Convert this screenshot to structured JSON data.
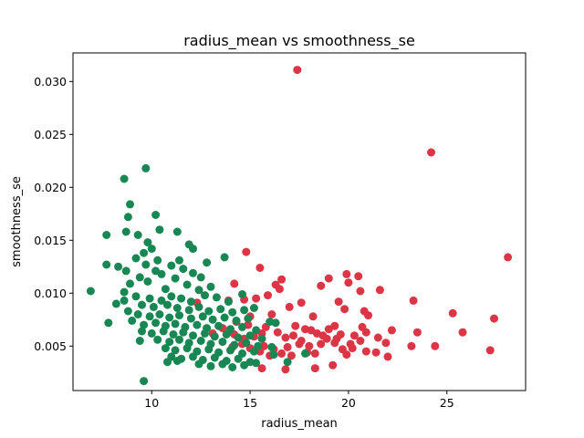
{
  "chart_data": {
    "type": "scatter",
    "title": "radius_mean vs smoothness_se",
    "xlabel": "radius_mean",
    "ylabel": "smoothness_se",
    "xlim": [
      6.0,
      29.0
    ],
    "ylim": [
      0.0008,
      0.0327
    ],
    "x_ticks": [
      10,
      15,
      20,
      25
    ],
    "x_tick_labels": [
      "10",
      "15",
      "20",
      "25"
    ],
    "y_ticks": [
      0.005,
      0.01,
      0.015,
      0.02,
      0.025,
      0.03
    ],
    "y_tick_labels": [
      "0.005",
      "0.010",
      "0.015",
      "0.020",
      "0.025",
      "0.030"
    ],
    "grid": false,
    "legend": "none",
    "series": [
      {
        "color": "#dc3545",
        "points": [
          [
            17.4,
            0.0311
          ],
          [
            24.2,
            0.0233
          ],
          [
            28.1,
            0.0134
          ],
          [
            14.8,
            0.0139
          ],
          [
            19.9,
            0.0118
          ],
          [
            20.5,
            0.0116
          ],
          [
            16.6,
            0.0113
          ],
          [
            19.0,
            0.0114
          ],
          [
            18.6,
            0.0107
          ],
          [
            14.2,
            0.0109
          ],
          [
            15.5,
            0.0124
          ],
          [
            20.0,
            0.011
          ],
          [
            16.3,
            0.0108
          ],
          [
            16.5,
            0.0104
          ],
          [
            20.6,
            0.0102
          ],
          [
            21.6,
            0.0103
          ],
          [
            15.9,
            0.0098
          ],
          [
            17.6,
            0.0091
          ],
          [
            15.3,
            0.0095
          ],
          [
            13.9,
            0.0093
          ],
          [
            14.7,
            0.0094
          ],
          [
            12.3,
            0.0091
          ],
          [
            19.5,
            0.0092
          ],
          [
            23.3,
            0.0093
          ],
          [
            17.0,
            0.0087
          ],
          [
            19.8,
            0.0085
          ],
          [
            20.8,
            0.0083
          ],
          [
            25.3,
            0.0081
          ],
          [
            21.0,
            0.0079
          ],
          [
            16.1,
            0.008
          ],
          [
            18.2,
            0.0078
          ],
          [
            15.0,
            0.0078
          ],
          [
            14.3,
            0.0073
          ],
          [
            27.4,
            0.0076
          ],
          [
            22.2,
            0.0065
          ],
          [
            23.5,
            0.0063
          ],
          [
            25.8,
            0.0063
          ],
          [
            19.0,
            0.0066
          ],
          [
            18.4,
            0.0062
          ],
          [
            17.8,
            0.0066
          ],
          [
            17.2,
            0.006
          ],
          [
            16.8,
            0.0058
          ],
          [
            16.4,
            0.0063
          ],
          [
            15.6,
            0.0062
          ],
          [
            15.2,
            0.0059
          ],
          [
            14.7,
            0.0057
          ],
          [
            18.9,
            0.0057
          ],
          [
            19.6,
            0.0061
          ],
          [
            20.3,
            0.006
          ],
          [
            20.9,
            0.0063
          ],
          [
            21.5,
            0.0058
          ],
          [
            21.9,
            0.0053
          ],
          [
            20.6,
            0.0055
          ],
          [
            19.3,
            0.0053
          ],
          [
            18.6,
            0.0052
          ],
          [
            18.0,
            0.005
          ],
          [
            17.5,
            0.0052
          ],
          [
            16.9,
            0.0049
          ],
          [
            16.2,
            0.0047
          ],
          [
            15.7,
            0.005
          ],
          [
            15.4,
            0.0046
          ],
          [
            15.0,
            0.0048
          ],
          [
            19.7,
            0.0047
          ],
          [
            20.2,
            0.0048
          ],
          [
            20.9,
            0.0045
          ],
          [
            21.4,
            0.0044
          ],
          [
            23.2,
            0.005
          ],
          [
            24.4,
            0.005
          ],
          [
            27.2,
            0.0046
          ],
          [
            22.0,
            0.004
          ],
          [
            19.9,
            0.0042
          ],
          [
            18.3,
            0.0043
          ],
          [
            17.9,
            0.0044
          ],
          [
            17.1,
            0.0041
          ],
          [
            16.6,
            0.0043
          ],
          [
            16.0,
            0.0041
          ],
          [
            15.5,
            0.0045
          ],
          [
            19.2,
            0.0032
          ],
          [
            18.3,
            0.0029
          ],
          [
            16.8,
            0.0028
          ],
          [
            15.6,
            0.0029
          ],
          [
            14.1,
            0.0049
          ],
          [
            14.6,
            0.0052
          ],
          [
            13.6,
            0.0067
          ],
          [
            13.1,
            0.0062
          ],
          [
            14.2,
            0.0061
          ],
          [
            14.9,
            0.007
          ],
          [
            15.8,
            0.0068
          ],
          [
            17.3,
            0.0069
          ],
          [
            18.1,
            0.0065
          ],
          [
            19.3,
            0.0069
          ],
          [
            20.7,
            0.0068
          ],
          [
            18.7,
            0.006
          ],
          [
            19.4,
            0.0057
          ],
          [
            20.1,
            0.0052
          ],
          [
            17.6,
            0.0055
          ]
        ]
      },
      {
        "color": "#198754",
        "points": [
          [
            9.7,
            0.0218
          ],
          [
            8.6,
            0.0208
          ],
          [
            8.9,
            0.0184
          ],
          [
            10.2,
            0.0174
          ],
          [
            8.8,
            0.0172
          ],
          [
            10.4,
            0.016
          ],
          [
            9.3,
            0.0155
          ],
          [
            11.3,
            0.0158
          ],
          [
            7.7,
            0.0155
          ],
          [
            8.7,
            0.0158
          ],
          [
            9.8,
            0.0148
          ],
          [
            11.9,
            0.0146
          ],
          [
            12.1,
            0.0142
          ],
          [
            9.6,
            0.0138
          ],
          [
            10.0,
            0.0142
          ],
          [
            9.2,
            0.0133
          ],
          [
            10.3,
            0.0131
          ],
          [
            7.7,
            0.0127
          ],
          [
            11.4,
            0.0131
          ],
          [
            12.8,
            0.0129
          ],
          [
            13.7,
            0.0134
          ],
          [
            8.3,
            0.0125
          ],
          [
            8.7,
            0.0121
          ],
          [
            9.7,
            0.0127
          ],
          [
            11.0,
            0.0126
          ],
          [
            11.6,
            0.0123
          ],
          [
            12.1,
            0.0119
          ],
          [
            10.2,
            0.0121
          ],
          [
            10.5,
            0.0118
          ],
          [
            11.2,
            0.0114
          ],
          [
            9.4,
            0.0115
          ],
          [
            9.8,
            0.0111
          ],
          [
            8.9,
            0.0109
          ],
          [
            12.5,
            0.0115
          ],
          [
            13.0,
            0.0106
          ],
          [
            11.8,
            0.0108
          ],
          [
            12.4,
            0.0103
          ],
          [
            10.7,
            0.0104
          ],
          [
            6.9,
            0.0102
          ],
          [
            8.6,
            0.0101
          ],
          [
            9.2,
            0.0097
          ],
          [
            9.9,
            0.0095
          ],
          [
            10.5,
            0.0093
          ],
          [
            11.0,
            0.0097
          ],
          [
            11.5,
            0.0095
          ],
          [
            12.0,
            0.0092
          ],
          [
            12.7,
            0.0098
          ],
          [
            13.3,
            0.0096
          ],
          [
            13.9,
            0.0092
          ],
          [
            14.6,
            0.0099
          ],
          [
            8.2,
            0.009
          ],
          [
            8.6,
            0.0093
          ],
          [
            9.5,
            0.0089
          ],
          [
            10.1,
            0.0087
          ],
          [
            10.8,
            0.0089
          ],
          [
            11.3,
            0.0086
          ],
          [
            11.9,
            0.0084
          ],
          [
            12.4,
            0.0087
          ],
          [
            12.9,
            0.0083
          ],
          [
            13.5,
            0.0085
          ],
          [
            14.1,
            0.0082
          ],
          [
            14.7,
            0.0084
          ],
          [
            15.2,
            0.0086
          ],
          [
            8.8,
            0.0083
          ],
          [
            9.3,
            0.008
          ],
          [
            9.9,
            0.0078
          ],
          [
            10.4,
            0.008
          ],
          [
            10.9,
            0.0077
          ],
          [
            11.4,
            0.0079
          ],
          [
            12.0,
            0.0076
          ],
          [
            12.6,
            0.0078
          ],
          [
            13.1,
            0.0075
          ],
          [
            13.7,
            0.0077
          ],
          [
            14.3,
            0.0074
          ],
          [
            14.9,
            0.0076
          ],
          [
            7.8,
            0.0072
          ],
          [
            9.0,
            0.0074
          ],
          [
            9.6,
            0.007
          ],
          [
            10.2,
            0.0072
          ],
          [
            10.7,
            0.0069
          ],
          [
            11.2,
            0.0071
          ],
          [
            11.7,
            0.0068
          ],
          [
            12.3,
            0.007
          ],
          [
            12.8,
            0.0067
          ],
          [
            13.4,
            0.0069
          ],
          [
            14.0,
            0.0066
          ],
          [
            14.6,
            0.0068
          ],
          [
            15.3,
            0.0065
          ],
          [
            16.0,
            0.0073
          ],
          [
            16.3,
            0.0072
          ],
          [
            9.5,
            0.0064
          ],
          [
            10.0,
            0.0062
          ],
          [
            10.6,
            0.0064
          ],
          [
            11.1,
            0.0061
          ],
          [
            11.6,
            0.0063
          ],
          [
            12.1,
            0.006
          ],
          [
            12.7,
            0.0062
          ],
          [
            13.2,
            0.0059
          ],
          [
            13.8,
            0.0061
          ],
          [
            14.4,
            0.0058
          ],
          [
            15.0,
            0.006
          ],
          [
            15.6,
            0.0057
          ],
          [
            9.4,
            0.0055
          ],
          [
            10.3,
            0.0056
          ],
          [
            10.9,
            0.0054
          ],
          [
            11.4,
            0.0056
          ],
          [
            11.9,
            0.0053
          ],
          [
            12.5,
            0.0055
          ],
          [
            13.0,
            0.0052
          ],
          [
            13.6,
            0.0054
          ],
          [
            14.2,
            0.0051
          ],
          [
            14.8,
            0.0053
          ],
          [
            15.4,
            0.005
          ],
          [
            16.1,
            0.0049
          ],
          [
            10.7,
            0.0048
          ],
          [
            11.2,
            0.0046
          ],
          [
            11.8,
            0.0048
          ],
          [
            12.3,
            0.0045
          ],
          [
            12.9,
            0.0047
          ],
          [
            13.4,
            0.0044
          ],
          [
            14.0,
            0.0046
          ],
          [
            14.6,
            0.0043
          ],
          [
            15.2,
            0.0045
          ],
          [
            16.2,
            0.0042
          ],
          [
            11.0,
            0.004
          ],
          [
            11.5,
            0.0038
          ],
          [
            12.1,
            0.004
          ],
          [
            12.6,
            0.0037
          ],
          [
            13.2,
            0.0039
          ],
          [
            13.8,
            0.0036
          ],
          [
            14.4,
            0.0038
          ],
          [
            15.0,
            0.0035
          ],
          [
            10.8,
            0.0035
          ],
          [
            11.3,
            0.0036
          ],
          [
            12.4,
            0.0033
          ],
          [
            13.0,
            0.0031
          ],
          [
            13.6,
            0.0033
          ],
          [
            14.1,
            0.003
          ],
          [
            14.7,
            0.0032
          ],
          [
            15.3,
            0.0034
          ],
          [
            16.9,
            0.0035
          ],
          [
            17.8,
            0.0043
          ],
          [
            9.6,
            0.0017
          ]
        ]
      }
    ]
  }
}
